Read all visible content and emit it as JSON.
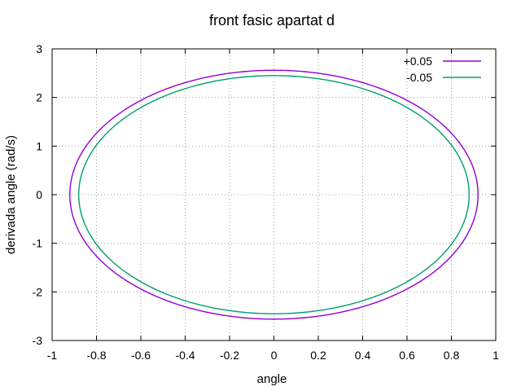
{
  "chart_data": {
    "type": "line",
    "title": "front fasic apartat d",
    "xlabel": "angle",
    "ylabel": "derivada angle (rad/s)",
    "xlim": [
      -1,
      1
    ],
    "ylim": [
      -3,
      3
    ],
    "xticks": [
      -1,
      -0.8,
      -0.6,
      -0.4,
      -0.2,
      0,
      0.2,
      0.4,
      0.6,
      0.8,
      1
    ],
    "yticks": [
      -3,
      -2,
      -1,
      0,
      1,
      2,
      3
    ],
    "grid": true,
    "legend_position": "top-right",
    "series": [
      {
        "name": "+0.05",
        "color": "#9400d3",
        "shape": "ellipse",
        "x_amplitude": 0.92,
        "y_amplitude": 2.56
      },
      {
        "name": "-0.05",
        "color": "#009e73",
        "shape": "ellipse",
        "x_amplitude": 0.88,
        "y_amplitude": 2.45
      }
    ]
  }
}
